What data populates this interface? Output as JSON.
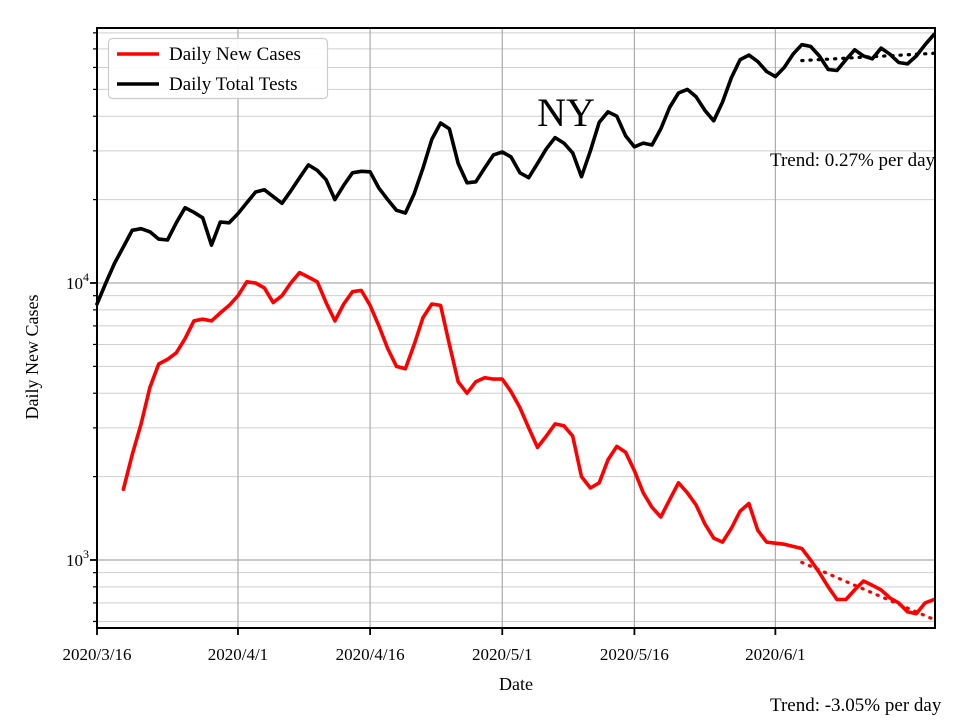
{
  "plot": {
    "annotation": "NY"
  },
  "annotations": {
    "tests_trend": "Trend: 0.27% per day",
    "cases_trend": "Trend: -3.05% per day"
  },
  "legend": {
    "items": [
      {
        "label": "Daily New Cases",
        "color": "#ff0000"
      },
      {
        "label": "Daily Total Tests",
        "color": "#000000"
      }
    ]
  },
  "axes": {
    "xlabel": "Date",
    "ylabel": "Daily New Cases",
    "x_tick_labels": [
      "2020/3/16",
      "2020/4/1",
      "2020/4/16",
      "2020/5/1",
      "2020/5/16",
      "2020/6/1"
    ],
    "y_tick_labels": [
      {
        "base": "10",
        "exp": "4",
        "value": 10000
      },
      {
        "base": "10",
        "exp": "3",
        "value": 1000
      }
    ]
  },
  "colors": {
    "cases": "#ff0000",
    "tests": "#000000",
    "grid_major": "#ababab",
    "grid_minor": "#cfcfcf",
    "spine": "#000000",
    "legend_border": "#cccccc"
  },
  "chart_data": {
    "type": "line",
    "title": "NY",
    "xlabel": "Date",
    "ylabel": "Daily New Cases",
    "x_axis": {
      "start": "2020/3/16",
      "end": "2020/6/19",
      "tick_dates": [
        "2020/3/16",
        "2020/4/1",
        "2020/4/16",
        "2020/5/1",
        "2020/5/16",
        "2020/6/1"
      ]
    },
    "y_axis": {
      "scale": "log",
      "range": [
        570,
        83000
      ],
      "major_ticks": [
        1000,
        10000
      ],
      "minor_ticks": [
        600,
        700,
        800,
        900,
        2000,
        3000,
        4000,
        5000,
        6000,
        7000,
        8000,
        9000,
        20000,
        30000,
        40000,
        50000,
        60000,
        70000,
        80000
      ],
      "grid": "both"
    },
    "legend_position": "upper-left",
    "series": [
      {
        "name": "Daily New Cases",
        "color": "#ff0000",
        "style": "solid",
        "points": [
          [
            "2020/3/19",
            1800
          ],
          [
            "2020/3/20",
            2400
          ],
          [
            "2020/3/21",
            3100
          ],
          [
            "2020/3/22",
            4200
          ],
          [
            "2020/3/23",
            5100
          ],
          [
            "2020/3/24",
            5300
          ],
          [
            "2020/3/25",
            5600
          ],
          [
            "2020/3/26",
            6300
          ],
          [
            "2020/3/27",
            7300
          ],
          [
            "2020/3/28",
            7400
          ],
          [
            "2020/3/29",
            7300
          ],
          [
            "2020/3/30",
            7800
          ],
          [
            "2020/3/31",
            8300
          ],
          [
            "2020/4/1",
            9000
          ],
          [
            "2020/4/2",
            10100
          ],
          [
            "2020/4/3",
            10000
          ],
          [
            "2020/4/4",
            9600
          ],
          [
            "2020/4/5",
            8500
          ],
          [
            "2020/4/6",
            9000
          ],
          [
            "2020/4/7",
            10000
          ],
          [
            "2020/4/8",
            10900
          ],
          [
            "2020/4/9",
            10500
          ],
          [
            "2020/4/10",
            10100
          ],
          [
            "2020/4/11",
            8500
          ],
          [
            "2020/4/12",
            7300
          ],
          [
            "2020/4/13",
            8400
          ],
          [
            "2020/4/14",
            9300
          ],
          [
            "2020/4/15",
            9400
          ],
          [
            "2020/4/16",
            8300
          ],
          [
            "2020/4/17",
            7000
          ],
          [
            "2020/4/18",
            5800
          ],
          [
            "2020/4/19",
            5000
          ],
          [
            "2020/4/20",
            4900
          ],
          [
            "2020/4/21",
            6000
          ],
          [
            "2020/4/22",
            7500
          ],
          [
            "2020/4/23",
            8400
          ],
          [
            "2020/4/24",
            8300
          ],
          [
            "2020/4/25",
            6000
          ],
          [
            "2020/4/26",
            4400
          ],
          [
            "2020/4/27",
            4000
          ],
          [
            "2020/4/28",
            4400
          ],
          [
            "2020/4/29",
            4550
          ],
          [
            "2020/4/30",
            4500
          ],
          [
            "2020/5/1",
            4500
          ],
          [
            "2020/5/2",
            4050
          ],
          [
            "2020/5/3",
            3550
          ],
          [
            "2020/5/4",
            3000
          ],
          [
            "2020/5/5",
            2550
          ],
          [
            "2020/5/6",
            2800
          ],
          [
            "2020/5/7",
            3100
          ],
          [
            "2020/5/8",
            3050
          ],
          [
            "2020/5/9",
            2800
          ],
          [
            "2020/5/10",
            2000
          ],
          [
            "2020/5/11",
            1820
          ],
          [
            "2020/5/12",
            1900
          ],
          [
            "2020/5/13",
            2300
          ],
          [
            "2020/5/14",
            2570
          ],
          [
            "2020/5/15",
            2450
          ],
          [
            "2020/5/16",
            2100
          ],
          [
            "2020/5/17",
            1750
          ],
          [
            "2020/5/18",
            1550
          ],
          [
            "2020/5/19",
            1430
          ],
          [
            "2020/5/20",
            1650
          ],
          [
            "2020/5/21",
            1900
          ],
          [
            "2020/5/22",
            1750
          ],
          [
            "2020/5/23",
            1580
          ],
          [
            "2020/5/24",
            1350
          ],
          [
            "2020/5/25",
            1200
          ],
          [
            "2020/5/26",
            1160
          ],
          [
            "2020/5/27",
            1300
          ],
          [
            "2020/5/28",
            1500
          ],
          [
            "2020/5/29",
            1600
          ],
          [
            "2020/5/30",
            1280
          ],
          [
            "2020/5/31",
            1160
          ],
          [
            "2020/6/1",
            1150
          ],
          [
            "2020/6/2",
            1140
          ],
          [
            "2020/6/3",
            1120
          ],
          [
            "2020/6/4",
            1100
          ],
          [
            "2020/6/5",
            1000
          ],
          [
            "2020/6/6",
            900
          ],
          [
            "2020/6/7",
            800
          ],
          [
            "2020/6/8",
            720
          ],
          [
            "2020/6/9",
            720
          ],
          [
            "2020/6/10",
            780
          ],
          [
            "2020/6/11",
            840
          ],
          [
            "2020/6/12",
            810
          ],
          [
            "2020/6/13",
            780
          ],
          [
            "2020/6/14",
            730
          ],
          [
            "2020/6/15",
            700
          ],
          [
            "2020/6/16",
            650
          ],
          [
            "2020/6/17",
            640
          ],
          [
            "2020/6/18",
            700
          ],
          [
            "2020/6/19",
            720
          ]
        ]
      },
      {
        "name": "Daily Total Tests",
        "color": "#000000",
        "style": "solid",
        "points": [
          [
            "2020/3/16",
            8400
          ],
          [
            "2020/3/17",
            10000
          ],
          [
            "2020/3/18",
            11800
          ],
          [
            "2020/3/19",
            13500
          ],
          [
            "2020/3/20",
            15500
          ],
          [
            "2020/3/21",
            15700
          ],
          [
            "2020/3/22",
            15300
          ],
          [
            "2020/3/23",
            14400
          ],
          [
            "2020/3/24",
            14300
          ],
          [
            "2020/3/25",
            16500
          ],
          [
            "2020/3/26",
            18700
          ],
          [
            "2020/3/27",
            18000
          ],
          [
            "2020/3/28",
            17200
          ],
          [
            "2020/3/29",
            13700
          ],
          [
            "2020/3/30",
            16600
          ],
          [
            "2020/3/31",
            16500
          ],
          [
            "2020/4/1",
            17800
          ],
          [
            "2020/4/2",
            19500
          ],
          [
            "2020/4/3",
            21300
          ],
          [
            "2020/4/4",
            21700
          ],
          [
            "2020/4/5",
            20500
          ],
          [
            "2020/4/6",
            19400
          ],
          [
            "2020/4/7",
            21500
          ],
          [
            "2020/4/8",
            24000
          ],
          [
            "2020/4/9",
            26700
          ],
          [
            "2020/4/10",
            25500
          ],
          [
            "2020/4/11",
            23600
          ],
          [
            "2020/4/12",
            20000
          ],
          [
            "2020/4/13",
            22500
          ],
          [
            "2020/4/14",
            25000
          ],
          [
            "2020/4/15",
            25300
          ],
          [
            "2020/4/16",
            25200
          ],
          [
            "2020/4/17",
            22000
          ],
          [
            "2020/4/18",
            20000
          ],
          [
            "2020/4/19",
            18300
          ],
          [
            "2020/4/20",
            17900
          ],
          [
            "2020/4/21",
            21000
          ],
          [
            "2020/4/22",
            26000
          ],
          [
            "2020/4/23",
            33000
          ],
          [
            "2020/4/24",
            37800
          ],
          [
            "2020/4/25",
            36000
          ],
          [
            "2020/4/26",
            27000
          ],
          [
            "2020/4/27",
            23000
          ],
          [
            "2020/4/28",
            23200
          ],
          [
            "2020/4/29",
            26000
          ],
          [
            "2020/4/30",
            29000
          ],
          [
            "2020/5/1",
            29700
          ],
          [
            "2020/5/2",
            28500
          ],
          [
            "2020/5/3",
            25000
          ],
          [
            "2020/5/4",
            24000
          ],
          [
            "2020/5/5",
            27000
          ],
          [
            "2020/5/6",
            30500
          ],
          [
            "2020/5/7",
            33500
          ],
          [
            "2020/5/8",
            32000
          ],
          [
            "2020/5/9",
            29500
          ],
          [
            "2020/5/10",
            24200
          ],
          [
            "2020/5/11",
            30000
          ],
          [
            "2020/5/12",
            38000
          ],
          [
            "2020/5/13",
            41500
          ],
          [
            "2020/5/14",
            40000
          ],
          [
            "2020/5/15",
            34000
          ],
          [
            "2020/5/16",
            31000
          ],
          [
            "2020/5/17",
            32000
          ],
          [
            "2020/5/18",
            31500
          ],
          [
            "2020/5/19",
            36000
          ],
          [
            "2020/5/20",
            43000
          ],
          [
            "2020/5/21",
            48500
          ],
          [
            "2020/5/22",
            50000
          ],
          [
            "2020/5/23",
            47000
          ],
          [
            "2020/5/24",
            42000
          ],
          [
            "2020/5/25",
            38500
          ],
          [
            "2020/5/26",
            45000
          ],
          [
            "2020/5/27",
            55000
          ],
          [
            "2020/5/28",
            64000
          ],
          [
            "2020/5/29",
            66500
          ],
          [
            "2020/5/30",
            63000
          ],
          [
            "2020/5/31",
            58000
          ],
          [
            "2020/6/1",
            55600
          ],
          [
            "2020/6/2",
            60000
          ],
          [
            "2020/6/3",
            67000
          ],
          [
            "2020/6/4",
            72500
          ],
          [
            "2020/6/5",
            71500
          ],
          [
            "2020/6/6",
            66000
          ],
          [
            "2020/6/7",
            59000
          ],
          [
            "2020/6/8",
            58500
          ],
          [
            "2020/6/9",
            64000
          ],
          [
            "2020/6/10",
            69500
          ],
          [
            "2020/6/11",
            66000
          ],
          [
            "2020/6/12",
            64500
          ],
          [
            "2020/6/13",
            70500
          ],
          [
            "2020/6/14",
            67000
          ],
          [
            "2020/6/15",
            62500
          ],
          [
            "2020/6/16",
            61800
          ],
          [
            "2020/6/17",
            66000
          ],
          [
            "2020/6/18",
            72500
          ],
          [
            "2020/6/19",
            79000
          ]
        ]
      },
      {
        "name": "Tests trend",
        "label": "Trend: 0.27% per day",
        "trend_pct_per_day": 0.27,
        "color": "#000000",
        "style": "dotted",
        "points": [
          [
            "2020/6/4",
            63500
          ],
          [
            "2020/6/19",
            67500
          ]
        ]
      },
      {
        "name": "Cases trend",
        "label": "Trend: -3.05% per day",
        "trend_pct_per_day": -3.05,
        "color": "#ff0000",
        "style": "dotted",
        "points": [
          [
            "2020/6/4",
            980
          ],
          [
            "2020/6/19",
            610
          ]
        ]
      }
    ]
  }
}
